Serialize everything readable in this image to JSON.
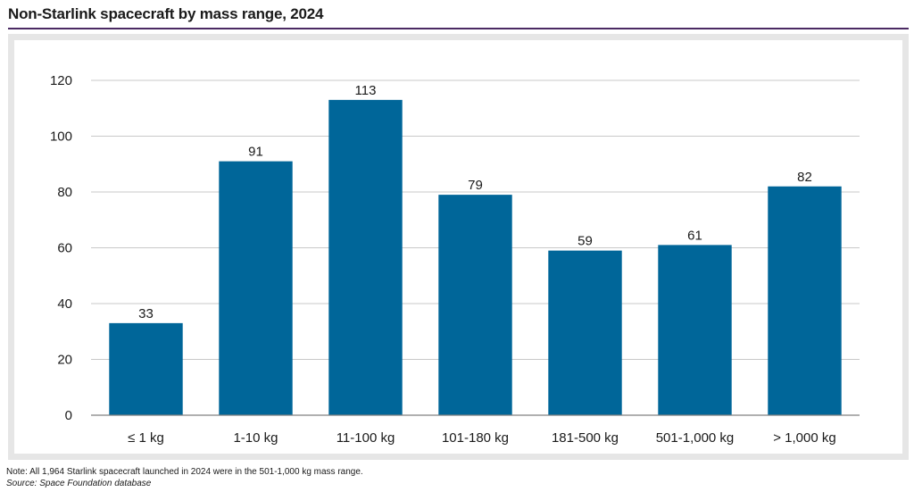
{
  "title": "Non-Starlink spacecraft by mass range, 2024",
  "note": "Note: All 1,964 Starlink spacecraft launched in 2024 were in the 501-1,000 kg mass range.",
  "source": "Source: Space Foundation database",
  "colors": {
    "bar": "#006699",
    "grid": "#c8c8c8",
    "frame": "#e6e6e6",
    "title_rule": "#4b2a63"
  },
  "chart_data": {
    "type": "bar",
    "title": "Non-Starlink spacecraft by mass range, 2024",
    "xlabel": "",
    "ylabel": "",
    "categories": [
      "≤ 1 kg",
      "1-10 kg",
      "11-100 kg",
      "101-180 kg",
      "181-500 kg",
      "501-1,000 kg",
      "> 1,000 kg"
    ],
    "values": [
      33,
      91,
      113,
      79,
      59,
      61,
      82
    ],
    "ylim": [
      0,
      120
    ],
    "yticks": [
      0,
      20,
      40,
      60,
      80,
      100,
      120
    ],
    "grid": true,
    "legend": "none"
  }
}
